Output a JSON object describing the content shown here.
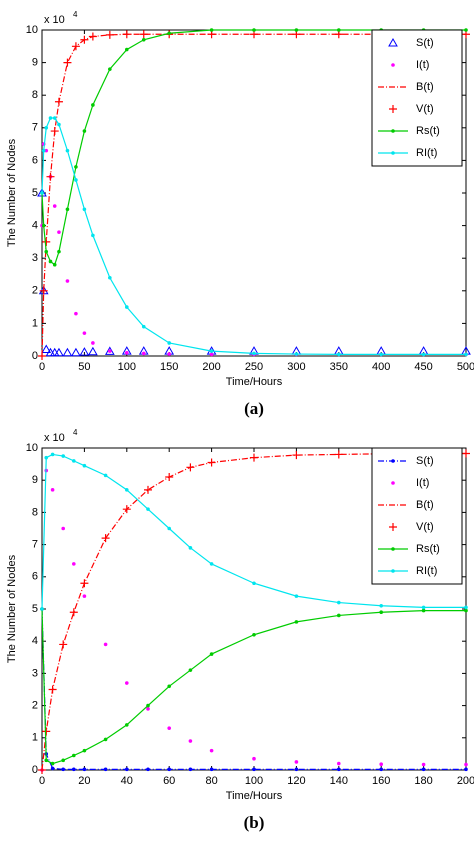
{
  "chart_data": [
    {
      "type": "line",
      "caption": "(a)",
      "xlabel": "Time/Hours",
      "ylabel": "The Number of Nodes",
      "y_multiplier": {
        "base": "x 10",
        "exponent": "4"
      },
      "x": [
        0,
        2,
        5,
        10,
        15,
        20,
        30,
        40,
        50,
        60,
        80,
        100,
        120,
        150,
        200,
        250,
        300,
        350,
        400,
        450,
        500
      ],
      "xlim": [
        0,
        500
      ],
      "xticks": [
        0,
        50,
        100,
        150,
        200,
        250,
        300,
        350,
        400,
        450,
        500
      ],
      "ylim": [
        0,
        10
      ],
      "yticks": [
        0,
        1,
        2,
        3,
        4,
        5,
        6,
        7,
        8,
        9,
        10
      ],
      "legend": "upper right",
      "series": [
        {
          "name": "S(t)",
          "color": "#0000ff",
          "marker": "triangle",
          "line": "none",
          "values": [
            5,
            2,
            0.2,
            0.1,
            0.1,
            0.1,
            0.1,
            0.1,
            0.12,
            0.13,
            0.14,
            0.15,
            0.15,
            0.15,
            0.15,
            0.15,
            0.15,
            0.15,
            0.15,
            0.15,
            0.15
          ]
        },
        {
          "name": "I(t)",
          "color": "#ff00ff",
          "marker": "dot",
          "line": "none",
          "values": [
            4,
            6.5,
            6.3,
            5.5,
            4.6,
            3.8,
            2.3,
            1.3,
            0.7,
            0.4,
            0.15,
            0.1,
            0.08,
            0.06,
            0.05,
            0.05,
            0.05,
            0.05,
            0.05,
            0.05,
            0.05
          ]
        },
        {
          "name": "B(t)",
          "color": "#ff0000",
          "marker": "none",
          "line": "dashdot",
          "values": [
            0,
            2,
            3.5,
            5.5,
            6.9,
            7.8,
            9,
            9.5,
            9.7,
            9.8,
            9.85,
            9.87,
            9.87,
            9.87,
            9.87,
            9.87,
            9.87,
            9.87,
            9.87,
            9.87,
            9.87
          ]
        },
        {
          "name": "V(t)",
          "color": "#ff0000",
          "marker": "plus",
          "line": "none",
          "values": [
            0,
            2,
            3.5,
            5.5,
            6.9,
            7.8,
            9,
            9.5,
            9.7,
            9.8,
            9.85,
            9.87,
            9.87,
            9.87,
            9.87,
            9.87,
            9.87,
            9.87,
            9.87,
            9.87,
            9.87
          ]
        },
        {
          "name": "Rs(t)",
          "color": "#00cc00",
          "marker": "dot",
          "line": "solid",
          "values": [
            5,
            4,
            3.2,
            2.9,
            2.8,
            3.2,
            4.5,
            5.8,
            6.9,
            7.7,
            8.8,
            9.4,
            9.7,
            9.9,
            10,
            10,
            10,
            10,
            10,
            10,
            10
          ]
        },
        {
          "name": "RI(t)",
          "color": "#00e5ee",
          "marker": "dot",
          "line": "solid",
          "values": [
            5,
            6.3,
            7,
            7.3,
            7.3,
            7.1,
            6.3,
            5.4,
            4.5,
            3.7,
            2.4,
            1.5,
            0.9,
            0.4,
            0.15,
            0.08,
            0.06,
            0.05,
            0.05,
            0.05,
            0.05
          ]
        }
      ]
    },
    {
      "type": "line",
      "caption": "(b)",
      "xlabel": "Time/Hours",
      "ylabel": "The Number of Nodes",
      "y_multiplier": {
        "base": "x 10",
        "exponent": "4"
      },
      "x": [
        0,
        2,
        5,
        10,
        15,
        20,
        30,
        40,
        50,
        60,
        70,
        80,
        100,
        120,
        140,
        160,
        180,
        200
      ],
      "xlim": [
        0,
        200
      ],
      "xticks": [
        0,
        20,
        40,
        60,
        80,
        100,
        120,
        140,
        160,
        180,
        200
      ],
      "ylim": [
        0,
        10
      ],
      "yticks": [
        0,
        1,
        2,
        3,
        4,
        5,
        6,
        7,
        8,
        9,
        10
      ],
      "legend": "upper right",
      "series": [
        {
          "name": "S(t)",
          "color": "#0000ff",
          "marker": "dot",
          "line": "dashdot",
          "values": [
            5,
            0.5,
            0.05,
            0.02,
            0.02,
            0.02,
            0.02,
            0.02,
            0.02,
            0.02,
            0.02,
            0.02,
            0.02,
            0.02,
            0.02,
            0.02,
            0.02,
            0.02
          ]
        },
        {
          "name": "I(t)",
          "color": "#ff00ff",
          "marker": "dot",
          "line": "none",
          "values": [
            0,
            9.3,
            8.7,
            7.5,
            6.4,
            5.4,
            3.9,
            2.7,
            1.9,
            1.3,
            0.9,
            0.6,
            0.35,
            0.25,
            0.2,
            0.18,
            0.17,
            0.17
          ]
        },
        {
          "name": "B(t)",
          "color": "#ff0000",
          "marker": "none",
          "line": "dashdot",
          "values": [
            0,
            1.2,
            2.5,
            3.9,
            4.9,
            5.8,
            7.2,
            8.1,
            8.7,
            9.1,
            9.4,
            9.55,
            9.7,
            9.78,
            9.8,
            9.82,
            9.83,
            9.83
          ]
        },
        {
          "name": "V(t)",
          "color": "#ff0000",
          "marker": "plus",
          "line": "none",
          "values": [
            0,
            1.2,
            2.5,
            3.9,
            4.9,
            5.8,
            7.2,
            8.1,
            8.7,
            9.1,
            9.4,
            9.55,
            9.7,
            9.78,
            9.8,
            9.82,
            9.83,
            9.83
          ]
        },
        {
          "name": "Rs(t)",
          "color": "#00cc00",
          "marker": "dot",
          "line": "solid",
          "values": [
            5,
            0.3,
            0.2,
            0.3,
            0.45,
            0.6,
            0.95,
            1.4,
            2,
            2.6,
            3.1,
            3.6,
            4.2,
            4.6,
            4.8,
            4.9,
            4.95,
            4.95
          ]
        },
        {
          "name": "RI(t)",
          "color": "#00e5ee",
          "marker": "dot",
          "line": "solid",
          "values": [
            5,
            9.7,
            9.8,
            9.75,
            9.6,
            9.45,
            9.15,
            8.7,
            8.1,
            7.5,
            6.9,
            6.4,
            5.8,
            5.4,
            5.2,
            5.1,
            5.05,
            5.05
          ]
        }
      ]
    }
  ]
}
